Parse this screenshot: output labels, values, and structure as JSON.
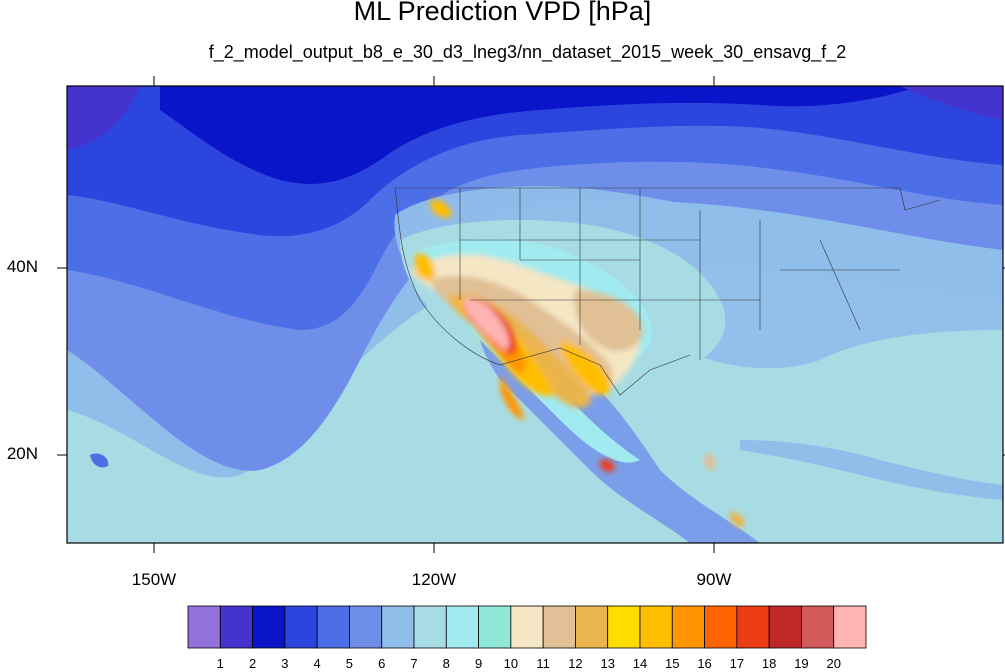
{
  "title": "ML Prediction VPD [hPa]",
  "subtitle": "f_2_model_output_b8_e_30_d3_lneg3/nn_dataset_2015_week_30_ensavg_f_2",
  "map": {
    "lon_labels": [
      {
        "lon": -150,
        "text": "150W"
      },
      {
        "lon": -120,
        "text": "120W"
      },
      {
        "lon": -90,
        "text": "90W"
      }
    ],
    "lat_labels": [
      {
        "lat": 40,
        "text": "40N"
      },
      {
        "lat": 20,
        "text": "20N"
      }
    ]
  },
  "colorbar": {
    "colors": [
      "#9370DB",
      "#4433CC",
      "#0A14C8",
      "#2B45DE",
      "#4C6EE6",
      "#6E8EEA",
      "#90BEEA",
      "#A8DCE4",
      "#A0EAF0",
      "#90E8D8",
      "#F5E6C4",
      "#E0C094",
      "#EAB44E",
      "#FFDC00",
      "#FFBE00",
      "#FF9600",
      "#FF6400",
      "#EB3C14",
      "#BE2828",
      "#D25A5A",
      "#FFB4B4"
    ],
    "labels": [
      "1",
      "2",
      "3",
      "4",
      "5",
      "6",
      "7",
      "8",
      "9",
      "10",
      "11",
      "12",
      "13",
      "14",
      "15",
      "16",
      "17",
      "18",
      "19",
      "20"
    ]
  }
}
